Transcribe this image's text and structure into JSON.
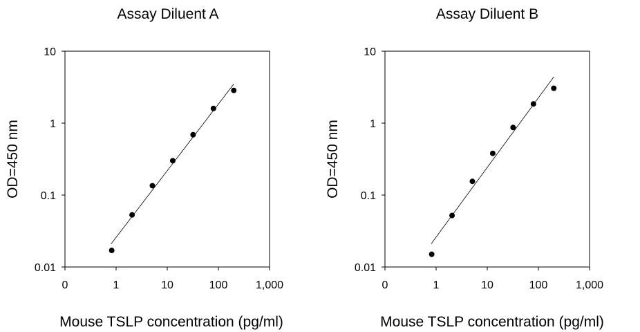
{
  "chart_data": [
    {
      "type": "scatter",
      "title": "Assay Diluent A",
      "xlabel": "Mouse TSLP concentration (pg/ml)",
      "ylabel": "OD=450 nm",
      "xscale": "log",
      "yscale": "log",
      "xlim": [
        0.1,
        1000
      ],
      "ylim": [
        0.01,
        10
      ],
      "x_tick_labels": [
        "0",
        "1",
        "10",
        "100",
        "1,000"
      ],
      "y_tick_labels": [
        "0.01",
        "0.1",
        "1",
        "10"
      ],
      "grid": false,
      "series": [
        {
          "x": [
            0.82,
            2.05,
            5.12,
            12.8,
            32,
            80,
            200
          ],
          "y": [
            0.017,
            0.053,
            0.135,
            0.3,
            0.69,
            1.6,
            2.85
          ]
        }
      ],
      "fit_line": {
        "x": [
          0.8,
          200
        ],
        "y": [
          0.021,
          3.5
        ]
      }
    },
    {
      "type": "scatter",
      "title": "Assay Diluent B",
      "xlabel": "Mouse TSLP concentration (pg/ml)",
      "ylabel": "OD=450 nm",
      "xscale": "log",
      "yscale": "log",
      "xlim": [
        0.1,
        1000
      ],
      "ylim": [
        0.01,
        10
      ],
      "x_tick_labels": [
        "0",
        "1",
        "10",
        "100",
        "1,000"
      ],
      "y_tick_labels": [
        "0.01",
        "0.1",
        "1",
        "10"
      ],
      "grid": false,
      "series": [
        {
          "x": [
            0.82,
            2.05,
            5.12,
            12.8,
            32,
            80,
            200
          ],
          "y": [
            0.015,
            0.052,
            0.155,
            0.38,
            0.87,
            1.85,
            3.05
          ]
        }
      ],
      "fit_line": {
        "x": [
          0.8,
          200
        ],
        "y": [
          0.021,
          4.4
        ]
      }
    }
  ]
}
